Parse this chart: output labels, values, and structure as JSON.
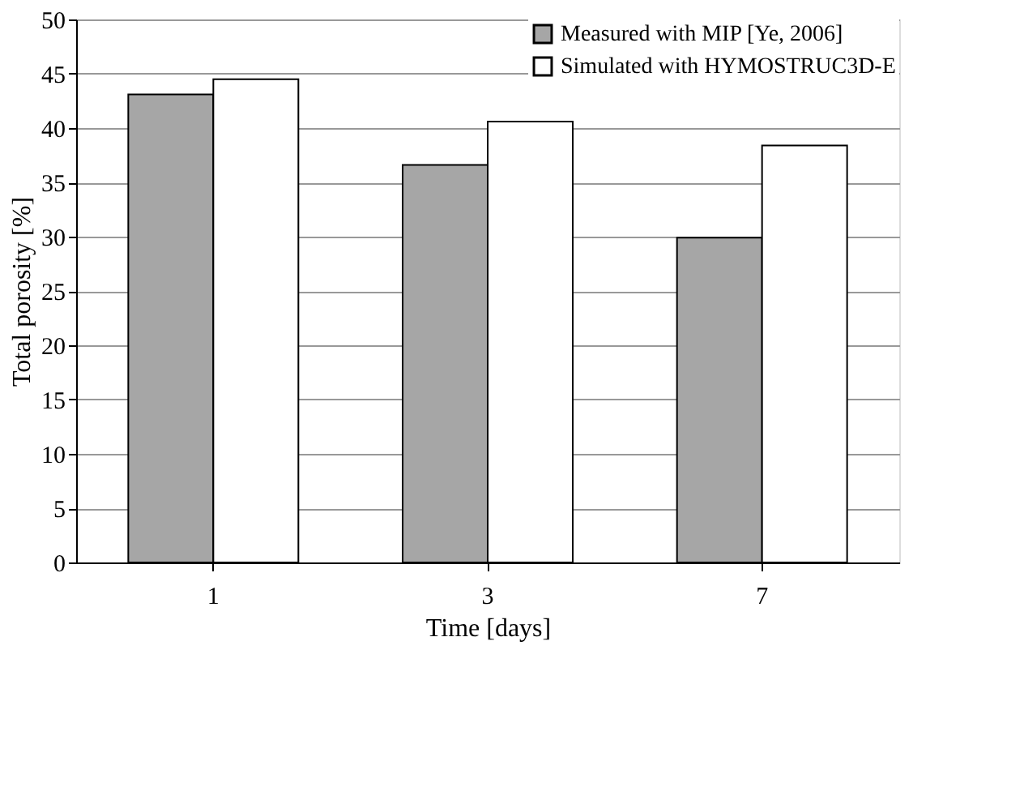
{
  "chart_data": {
    "type": "bar",
    "xlabel": "Time [days]",
    "ylabel": "Total porosity [%]",
    "categories": [
      "1",
      "3",
      "7"
    ],
    "series": [
      {
        "name": "Measured with MIP [Ye, 2006]",
        "color": "#a6a6a6",
        "values": [
          43.1,
          36.6,
          29.9
        ]
      },
      {
        "name": "Simulated with HYMOSTRUC3D-E",
        "color": "#ffffff",
        "values": [
          44.5,
          40.6,
          38.4
        ]
      }
    ],
    "ylim": [
      0,
      50
    ],
    "yticks": [
      0,
      5,
      10,
      15,
      20,
      25,
      30,
      35,
      40,
      45,
      50
    ],
    "grid": "y",
    "legend": "top right"
  }
}
